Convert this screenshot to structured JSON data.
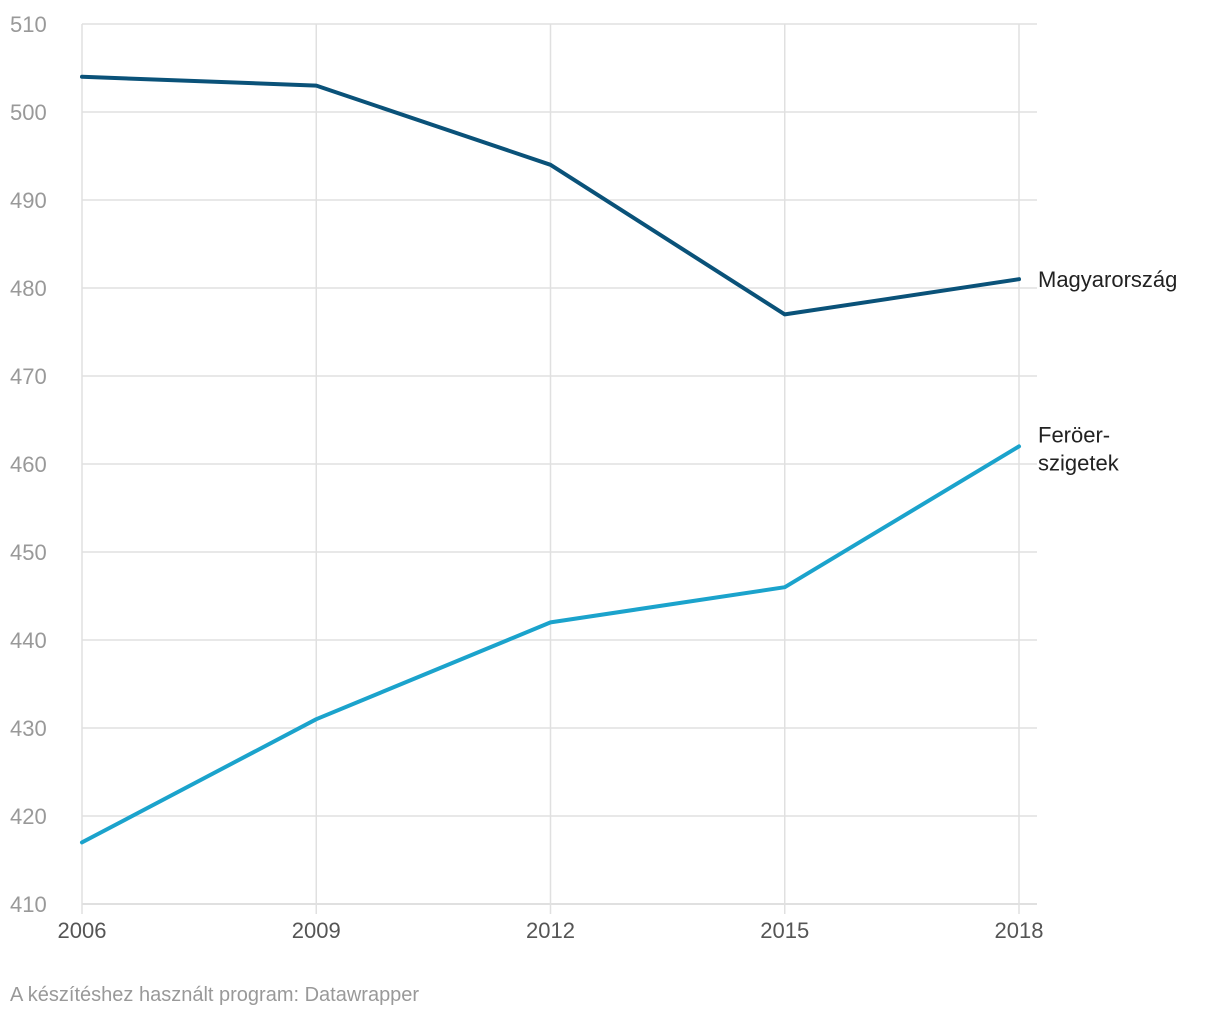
{
  "chart_data": {
    "type": "line",
    "x": [
      2006,
      2009,
      2012,
      2015,
      2018
    ],
    "x_tick_labels": [
      "2006",
      "2009",
      "2012",
      "2015",
      "2018"
    ],
    "ylim": [
      410,
      510
    ],
    "y_ticks": [
      410,
      420,
      430,
      440,
      450,
      460,
      470,
      480,
      490,
      500,
      510
    ],
    "y_tick_labels": [
      "410",
      "420",
      "430",
      "440",
      "450",
      "460",
      "470",
      "480",
      "490",
      "500",
      "510"
    ],
    "grid": true,
    "legend": "direct labels at line ends",
    "series": [
      {
        "name": "Magyarország",
        "label_lines": [
          "Magyarország"
        ],
        "color": "#0a5279",
        "values": [
          504,
          503,
          494,
          477,
          481
        ]
      },
      {
        "name": "Feröer-szigetek",
        "label_lines": [
          "Feröer-",
          "szigetek"
        ],
        "color": "#1ba3cc",
        "values": [
          417,
          431,
          442,
          446,
          462
        ]
      }
    ]
  },
  "footer": {
    "note": "A készítéshez használt program: Datawrapper"
  },
  "colors": {
    "grid": "#e0e0e0",
    "tick_text": "#999999",
    "x_tick_text": "#555555",
    "label_text": "#222222"
  }
}
